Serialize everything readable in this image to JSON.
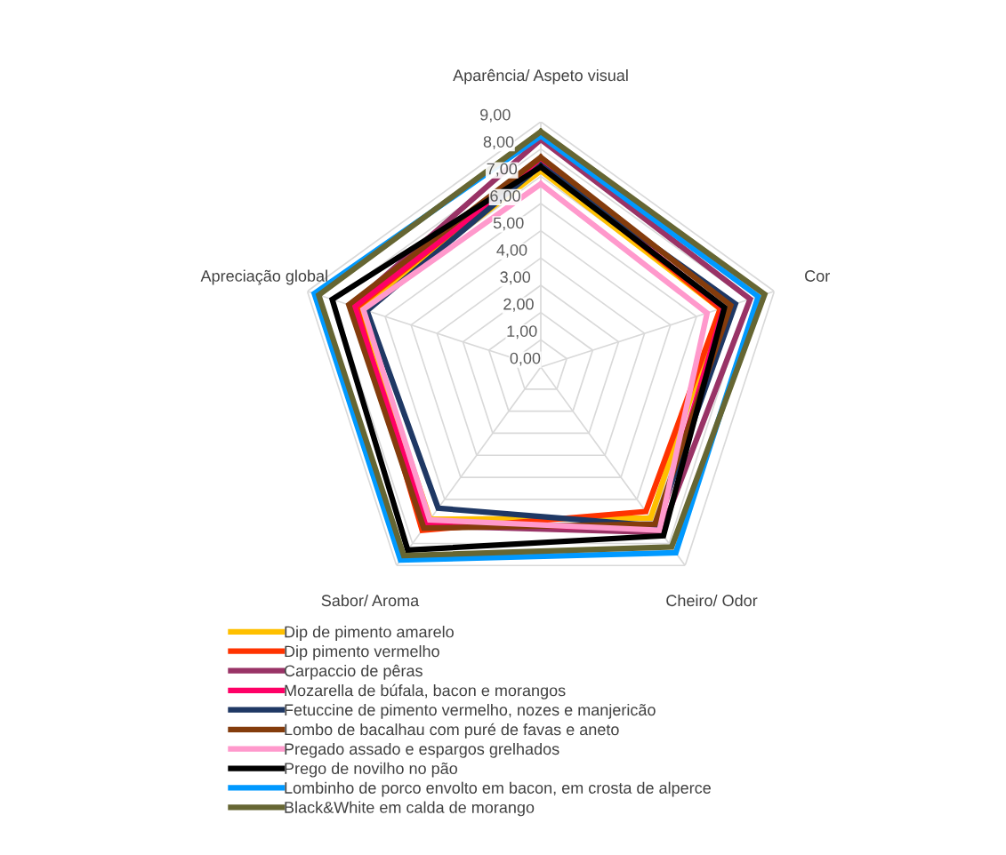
{
  "chart_data": {
    "type": "radar",
    "categories": [
      "Aparência/ Aspeto visual",
      "Cor",
      "Cheiro/ Odor",
      "Sabor/ Aroma",
      "Apreciação global"
    ],
    "ylim": [
      0,
      9
    ],
    "yticks": [
      {
        "value": 0,
        "label": "0,00"
      },
      {
        "value": 1,
        "label": "1,00"
      },
      {
        "value": 2,
        "label": "2,00"
      },
      {
        "value": 3,
        "label": "3,00"
      },
      {
        "value": 4,
        "label": "4,00"
      },
      {
        "value": 5,
        "label": "5,00"
      },
      {
        "value": 6,
        "label": "6,00"
      },
      {
        "value": 7,
        "label": "7,00"
      },
      {
        "value": 8,
        "label": "8,00"
      },
      {
        "value": 9,
        "label": "9,00"
      }
    ],
    "grid": true,
    "legend": "bottom",
    "marker": "none",
    "series": [
      {
        "name": "Dip de pimento amarelo",
        "color": "#ffc000",
        "values": [
          7.2,
          6.92,
          6.85,
          6.9,
          7.0
        ]
      },
      {
        "name": "Dip pimento vermelho",
        "color": "#ff3300",
        "values": [
          7.5,
          6.92,
          6.55,
          7.4,
          7.1
        ]
      },
      {
        "name": "Carpaccio de pêras",
        "color": "#993366",
        "values": [
          8.35,
          8.07,
          7.5,
          7.2,
          7.3
        ]
      },
      {
        "name": "Mozarella de búfala, bacon e morangos",
        "color": "#ff0066",
        "values": [
          7.45,
          7.05,
          7.3,
          7.12,
          7.18
        ]
      },
      {
        "name": "Fetuccine de pimento vermelho, nozes e manjericão",
        "color": "#1f3864",
        "values": [
          7.4,
          7.5,
          7.2,
          6.4,
          6.7
        ]
      },
      {
        "name": "Lombo de bacalhau com puré de favas e aneto",
        "color": "#843c0c",
        "values": [
          7.7,
          7.32,
          7.12,
          7.3,
          7.4
        ]
      },
      {
        "name": "Pregado assado e espargos grelhados",
        "color": "#ff99cc",
        "values": [
          6.72,
          6.41,
          7.4,
          6.93,
          6.84
        ]
      },
      {
        "name": "Prego de novilho no pão",
        "color": "#000000",
        "values": [
          7.34,
          7.08,
          7.65,
          8.3,
          8.04
        ]
      },
      {
        "name": "Lombinho de porco envolto em bacon, em crosta de alperce",
        "color": "#0099ff",
        "values": [
          8.48,
          8.38,
          8.42,
          8.75,
          8.73
        ]
      },
      {
        "name": "Black&White em calda de morango",
        "color": "#666633",
        "values": [
          8.64,
          8.63,
          8.16,
          8.55,
          8.56
        ]
      }
    ]
  }
}
